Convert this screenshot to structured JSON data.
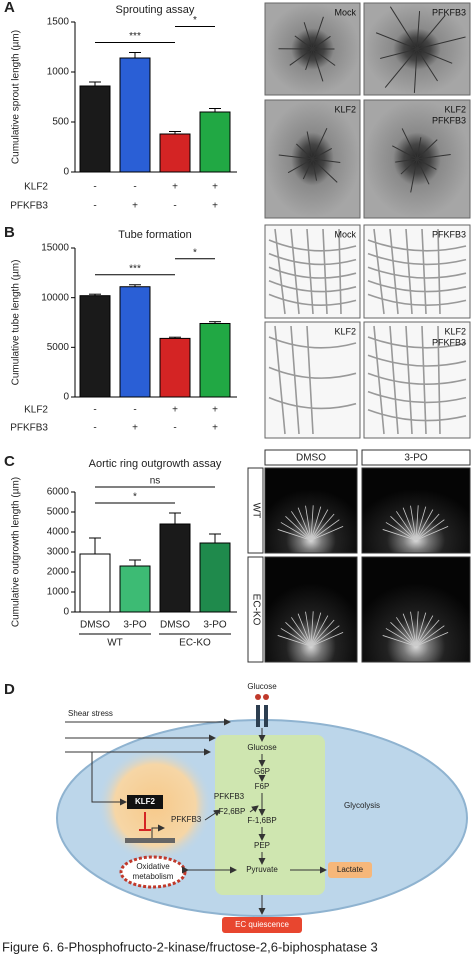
{
  "chart_data": [
    {
      "type": "bar",
      "panel": "A",
      "title": "Sprouting assay",
      "y_label": "Cumulative sprout length (µm)",
      "values": [
        860,
        1140,
        380,
        600
      ],
      "errors": [
        40,
        55,
        25,
        35
      ],
      "colors": [
        "#1a1a1a",
        "#2a5fd6",
        "#d42424",
        "#21a844"
      ],
      "ylim": [
        0,
        1500
      ],
      "yticks": [
        0,
        500,
        1000,
        1500
      ],
      "conditions": [
        {
          "name": "KLF2",
          "marks": [
            "-",
            "-",
            "+",
            "+"
          ]
        },
        {
          "name": "PFKFB3",
          "marks": [
            "-",
            "+",
            "-",
            "+"
          ]
        }
      ],
      "significance": [
        {
          "label": "***",
          "bars": [
            0,
            2
          ]
        },
        {
          "label": "*",
          "bars": [
            2,
            3
          ]
        }
      ]
    },
    {
      "type": "bar",
      "panel": "B",
      "title": "Tube formation",
      "y_label": "Cumulative tube length (µm)",
      "values": [
        10200,
        11100,
        5900,
        7400
      ],
      "errors": [
        150,
        200,
        120,
        180
      ],
      "colors": [
        "#1a1a1a",
        "#2a5fd6",
        "#d42424",
        "#21a844"
      ],
      "ylim": [
        0,
        15000
      ],
      "yticks": [
        0,
        5000,
        10000,
        15000
      ],
      "conditions": [
        {
          "name": "KLF2",
          "marks": [
            "-",
            "-",
            "+",
            "+"
          ]
        },
        {
          "name": "PFKFB3",
          "marks": [
            "-",
            "+",
            "-",
            "+"
          ]
        }
      ],
      "significance": [
        {
          "label": "***",
          "bars": [
            0,
            2
          ]
        },
        {
          "label": "*",
          "bars": [
            2,
            3
          ]
        }
      ]
    },
    {
      "type": "bar",
      "panel": "C",
      "title": "Aortic ring outgrowth assay",
      "y_label": "Cumulative outgrowth length (µm)",
      "categories": [
        "DMSO",
        "3-PO",
        "DMSO",
        "3-PO"
      ],
      "groups": [
        {
          "label": "WT",
          "size": 2
        },
        {
          "label": "EC-KO",
          "size": 2
        }
      ],
      "values": [
        2900,
        2300,
        4400,
        3450
      ],
      "errors": [
        800,
        300,
        550,
        450
      ],
      "colors": [
        "#ffffff",
        "#3dbb74",
        "#1a1a1a",
        "#1f8a4c"
      ],
      "ylim": [
        0,
        6000
      ],
      "yticks": [
        0,
        1000,
        2000,
        3000,
        4000,
        5000,
        6000
      ],
      "significance": [
        {
          "label": "*",
          "bars": [
            0,
            2
          ]
        },
        {
          "label": "ns",
          "bars": [
            0,
            3
          ]
        }
      ]
    }
  ],
  "images": {
    "A": [
      "Mock",
      "PFKFB3",
      "KLF2",
      [
        "KLF2",
        "PFKFB3"
      ]
    ],
    "B": [
      "Mock",
      "PFKFB3",
      "KLF2",
      [
        "KLF2",
        "PFKFB3"
      ]
    ],
    "C": {
      "columns": [
        "DMSO",
        "3-PO"
      ],
      "rows": [
        "WT",
        "EC-KO"
      ]
    }
  },
  "diagram": {
    "letter": "D",
    "shear_stress": "Shear stress",
    "glucose_outside": "Glucose",
    "pathway": [
      "Glucose",
      "G6P",
      "F6P",
      "F-1,6BP",
      "PEP",
      "Pyruvate"
    ],
    "side_enzyme": "PFKFB3",
    "side_product": "F2,6BP",
    "glycolysis": "Glycolysis",
    "lactate": "Lactate",
    "klf2": "KLF2",
    "gene": "PFKFB3",
    "oxidative": [
      "Oxidative",
      "metabolism"
    ],
    "outcome": "EC quiescence"
  },
  "caption": "Figure 6. 6-Phosphofructo-2-kinase/fructose-2,6-biphosphatase 3"
}
